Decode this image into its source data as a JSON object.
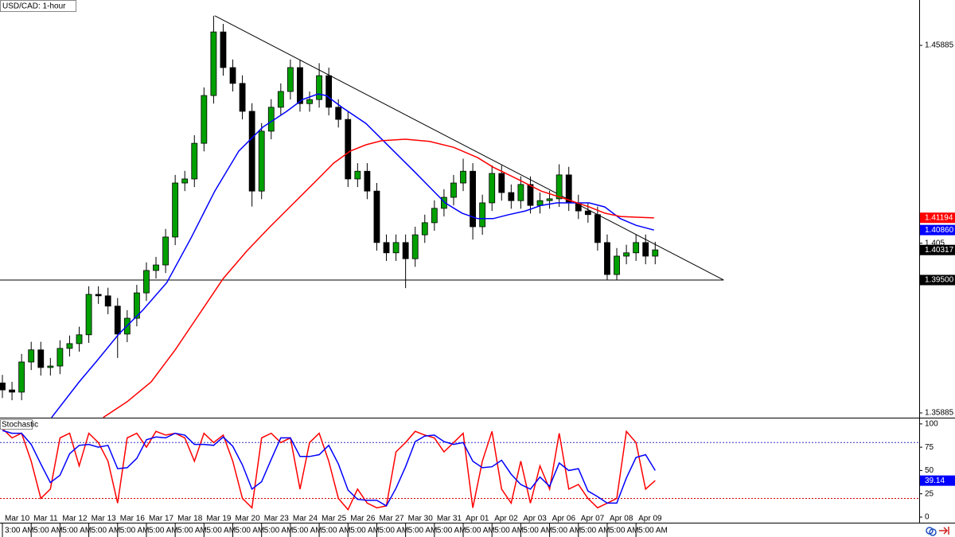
{
  "chart_data": [
    {
      "type": "candlestick",
      "title": "USD/CAD: 1-hour",
      "x": [
        0,
        8,
        16,
        24,
        32,
        40,
        48,
        56,
        64,
        72,
        80,
        88,
        96,
        104,
        112,
        120,
        128,
        136,
        144,
        152,
        160,
        168,
        176,
        184,
        192,
        200,
        208,
        216,
        224,
        232,
        240,
        248,
        256,
        264,
        272,
        280,
        288,
        296,
        304,
        312,
        320,
        328,
        336,
        344,
        352,
        360,
        368,
        376,
        384,
        392,
        400,
        408,
        416,
        424,
        432,
        440,
        448,
        456,
        464,
        472,
        480,
        488,
        496,
        504,
        512,
        520,
        528,
        536,
        544
      ],
      "open": [
        1.367,
        1.3651,
        1.3645,
        1.3727,
        1.376,
        1.3712,
        1.3716,
        1.3764,
        1.3777,
        1.3801,
        1.3911,
        1.3907,
        1.3879,
        1.3803,
        1.3846,
        1.3915,
        1.3976,
        1.3991,
        1.4067,
        1.4214,
        1.4225,
        1.4322,
        1.4452,
        1.4625,
        1.4528,
        1.4485,
        1.4409,
        1.4192,
        1.4355,
        1.442,
        1.4463,
        1.4528,
        1.443,
        1.4441,
        1.4506,
        1.442,
        1.4387,
        1.4225,
        1.4246,
        1.4192,
        1.4052,
        1.4024,
        1.4052,
        1.4008,
        1.4073,
        1.4106,
        1.4145,
        1.4175,
        1.4214,
        1.4246,
        1.4095,
        1.416,
        1.424,
        1.4188,
        1.4166,
        1.421,
        1.4153,
        1.4166,
        1.4171,
        1.4236,
        1.416,
        1.4138,
        1.4128,
        1.4052,
        1.3965,
        1.4015,
        1.4024,
        1.4052,
        1.4015
      ],
      "high": [
        1.3692,
        1.3673,
        1.3749,
        1.3782,
        1.3782,
        1.3738,
        1.3786,
        1.3799,
        1.3823,
        1.3933,
        1.3933,
        1.3929,
        1.3901,
        1.3868,
        1.3937,
        1.3998,
        1.4013,
        1.4089,
        1.4236,
        1.4247,
        1.4344,
        1.4474,
        1.4669,
        1.4647,
        1.455,
        1.4507,
        1.4431,
        1.4377,
        1.4442,
        1.4485,
        1.455,
        1.455,
        1.4463,
        1.454,
        1.4528,
        1.4442,
        1.4409,
        1.4268,
        1.4268,
        1.4214,
        1.4074,
        1.4074,
        1.4074,
        1.4095,
        1.4128,
        1.4167,
        1.4197,
        1.4236,
        1.428,
        1.4268,
        1.4182,
        1.4262,
        1.4262,
        1.421,
        1.4232,
        1.4232,
        1.4188,
        1.4193,
        1.4265,
        1.4258,
        1.4182,
        1.416,
        1.415,
        1.4074,
        1.4037,
        1.4046,
        1.4074,
        1.4074,
        1.4054
      ],
      "low": [
        1.3629,
        1.3623,
        1.3623,
        1.3705,
        1.369,
        1.369,
        1.3694,
        1.3742,
        1.3755,
        1.3779,
        1.3885,
        1.3857,
        1.3738,
        1.3781,
        1.3824,
        1.3893,
        1.3954,
        1.3969,
        1.4045,
        1.4192,
        1.4203,
        1.43,
        1.443,
        1.4506,
        1.4463,
        1.4387,
        1.415,
        1.417,
        1.4333,
        1.4398,
        1.4441,
        1.4408,
        1.4408,
        1.4419,
        1.4398,
        1.4365,
        1.4203,
        1.4203,
        1.417,
        1.403,
        1.4002,
        1.4002,
        1.3928,
        1.3986,
        1.4051,
        1.4084,
        1.4123,
        1.4153,
        1.4192,
        1.406,
        1.4073,
        1.4138,
        1.4166,
        1.4144,
        1.4144,
        1.4131,
        1.4131,
        1.4144,
        1.4149,
        1.4138,
        1.4116,
        1.4106,
        1.403,
        1.395,
        1.395,
        1.3993,
        1.4002,
        1.3993,
        1.3993
      ],
      "close": [
        1.3651,
        1.3645,
        1.3727,
        1.376,
        1.3712,
        1.3716,
        1.3764,
        1.3777,
        1.3801,
        1.3911,
        1.3907,
        1.3879,
        1.3803,
        1.3846,
        1.3915,
        1.3976,
        1.3991,
        1.4067,
        1.4214,
        1.4225,
        1.4322,
        1.4452,
        1.4625,
        1.4528,
        1.4485,
        1.4409,
        1.4192,
        1.4355,
        1.442,
        1.4463,
        1.4528,
        1.443,
        1.4441,
        1.4506,
        1.442,
        1.4387,
        1.4225,
        1.4246,
        1.4192,
        1.4052,
        1.4024,
        1.4052,
        1.4008,
        1.4073,
        1.4106,
        1.4145,
        1.4175,
        1.4214,
        1.4246,
        1.4095,
        1.416,
        1.424,
        1.4188,
        1.4166,
        1.421,
        1.4153,
        1.4166,
        1.4171,
        1.4236,
        1.416,
        1.4138,
        1.4128,
        1.4052,
        1.3965,
        1.4015,
        1.4024,
        1.4052,
        1.4015,
        1.4032
      ],
      "up_color": "#00a000",
      "down_color": "#000000",
      "series": [
        {
          "color": "#0000ff",
          "x": [
            41,
            64,
            78,
            97,
            117,
            137,
            157,
            177,
            197,
            217,
            237,
            250,
            263,
            270,
            283,
            303,
            323,
            343,
            356,
            369,
            383,
            396,
            409,
            422,
            436,
            449,
            462,
            475,
            489,
            502,
            515,
            528,
            543
          ],
          "values": [
            1.3576,
            1.3673,
            1.3727,
            1.3803,
            1.3868,
            1.3943,
            1.4063,
            1.4192,
            1.4301,
            1.4366,
            1.4409,
            1.4441,
            1.4456,
            1.4452,
            1.442,
            1.4376,
            1.4311,
            1.4246,
            1.4203,
            1.416,
            1.4132,
            1.4117,
            1.4117,
            1.4128,
            1.4138,
            1.4153,
            1.416,
            1.416,
            1.416,
            1.4149,
            1.4117,
            1.4099,
            1.4086
          ]
        },
        {
          "color": "#ff0000",
          "x": [
            84,
            104,
            124,
            144,
            164,
            184,
            204,
            223,
            243,
            263,
            276,
            290,
            303,
            316,
            336,
            356,
            376,
            396,
            409,
            429,
            449,
            469,
            489,
            502,
            515,
            528,
            543
          ],
          "values": [
            1.3576,
            1.3619,
            1.3673,
            1.376,
            1.3857,
            1.3954,
            1.403,
            1.4095,
            1.416,
            1.4225,
            1.4268,
            1.4301,
            1.4318,
            1.4329,
            1.4333,
            1.4327,
            1.4311,
            1.4283,
            1.4257,
            1.4225,
            1.4192,
            1.4171,
            1.4149,
            1.4132,
            1.4123,
            1.4121,
            1.4119
          ]
        }
      ],
      "trendlines": [
        {
          "x": [
            177,
            601
          ],
          "y": [
            1.4669,
            1.395
          ]
        },
        {
          "x": [
            -2,
            601
          ],
          "y": [
            1.395,
            1.395
          ]
        }
      ],
      "price_labels": [
        {
          "value": 1.41194,
          "color": "#ff0000"
        },
        {
          "value": 1.4086,
          "label": "1.40860",
          "color": "#0000ff"
        },
        {
          "value": 1.40317,
          "color": "#000000"
        },
        {
          "value": 1.395,
          "label": "1.39500",
          "color": "#000000"
        }
      ],
      "xlim": [
        -2,
        764
      ],
      "ylim": [
        1.35755,
        1.47119
      ],
      "yticks": [
        1.35885,
        1.405,
        1.45885
      ],
      "xticks": [
        {
          "value": 0,
          "label": "Mar 10"
        },
        {
          "value": 24,
          "label": "Mar 11"
        },
        {
          "value": 48,
          "label": "Mar 12"
        },
        {
          "value": 72,
          "label": "Mar 13"
        },
        {
          "value": 96,
          "label": "Mar 16"
        },
        {
          "value": 120,
          "label": "Mar 17"
        },
        {
          "value": 144,
          "label": "Mar 18"
        },
        {
          "value": 168,
          "label": "Mar 19"
        },
        {
          "value": 192,
          "label": "Mar 20"
        },
        {
          "value": 216,
          "label": "Mar 23"
        },
        {
          "value": 240,
          "label": "Mar 24"
        },
        {
          "value": 264,
          "label": "Mar 25"
        },
        {
          "value": 288,
          "label": "Mar 26"
        },
        {
          "value": 312,
          "label": "Mar 27"
        },
        {
          "value": 336,
          "label": "Mar 30"
        },
        {
          "value": 360,
          "label": "Mar 31"
        },
        {
          "value": 384,
          "label": "Apr 01"
        },
        {
          "value": 408,
          "label": "Apr 02"
        },
        {
          "value": 432,
          "label": "Apr 03"
        },
        {
          "value": 456,
          "label": "Apr 06"
        },
        {
          "value": 480,
          "label": "Apr 07"
        },
        {
          "value": 504,
          "label": "Apr 08"
        },
        {
          "value": 528,
          "label": "Apr 09"
        }
      ],
      "xtick_sublabels": [
        "3:00 AM",
        "5:00 AM",
        "5:00 AM",
        "5:00 AM",
        "5:00 AM",
        "5:00 AM",
        "5:00 AM",
        "5:00 AM",
        "5:00 AM",
        "5:00 AM",
        "5:00 AM",
        "5:00 AM",
        "5:00 AM",
        "5:00 AM",
        "5:00 AM",
        "5:00 AM",
        "5:00 AM",
        "5:00 AM",
        "5:00 AM",
        "5:00 AM",
        "5:00 AM",
        "5:00 AM",
        "5:00 AM"
      ]
    },
    {
      "type": "line",
      "title": "Stochastic",
      "x": [
        0,
        8,
        16,
        24,
        32,
        40,
        48,
        56,
        64,
        72,
        80,
        88,
        96,
        104,
        112,
        120,
        128,
        136,
        144,
        152,
        160,
        168,
        176,
        184,
        192,
        200,
        208,
        216,
        224,
        232,
        240,
        248,
        256,
        264,
        272,
        280,
        288,
        296,
        304,
        312,
        320,
        328,
        336,
        344,
        352,
        360,
        368,
        376,
        384,
        392,
        400,
        408,
        416,
        424,
        432,
        440,
        448,
        456,
        464,
        472,
        480,
        488,
        496,
        504,
        512,
        520,
        528,
        536,
        544
      ],
      "series": [
        {
          "color": "#ff0000",
          "values": [
            95,
            85,
            90,
            60,
            20,
            30,
            85,
            90,
            55,
            90,
            80,
            60,
            15,
            85,
            90,
            75,
            92,
            88,
            90,
            85,
            60,
            90,
            80,
            88,
            60,
            20,
            10,
            85,
            90,
            80,
            85,
            30,
            80,
            90,
            60,
            20,
            8,
            30,
            15,
            10,
            12,
            70,
            80,
            92,
            88,
            85,
            70,
            80,
            90,
            10,
            60,
            92,
            30,
            15,
            60,
            15,
            55,
            30,
            90,
            30,
            35,
            20,
            10,
            15,
            20,
            92,
            80,
            30,
            39.14
          ]
        },
        {
          "color": "#0000ff",
          "values": [
            93,
            90,
            90,
            78,
            57,
            37,
            45,
            68,
            77,
            78,
            75,
            77,
            52,
            53,
            63,
            83,
            86,
            85,
            90,
            88,
            78,
            78,
            77,
            86,
            76,
            56,
            30,
            38,
            62,
            85,
            85,
            65,
            65,
            67,
            77,
            57,
            29,
            19,
            18,
            18,
            12,
            31,
            54,
            81,
            87,
            88,
            81,
            78,
            80,
            60,
            53,
            54,
            61,
            46,
            35,
            30,
            43,
            33,
            58,
            50,
            52,
            28,
            22,
            15,
            15,
            42,
            64,
            67,
            50
          ]
        }
      ],
      "levels": [
        {
          "value": 80,
          "color": "#3030c0"
        },
        {
          "value": 20,
          "color": "#d00000"
        }
      ],
      "price_labels": [
        {
          "value": 39.14,
          "color": "#0000ff"
        }
      ],
      "xlim": [
        -2,
        764
      ],
      "ylim": [
        -6,
        105
      ],
      "yticks": [
        0,
        25,
        50,
        75,
        100
      ]
    }
  ]
}
